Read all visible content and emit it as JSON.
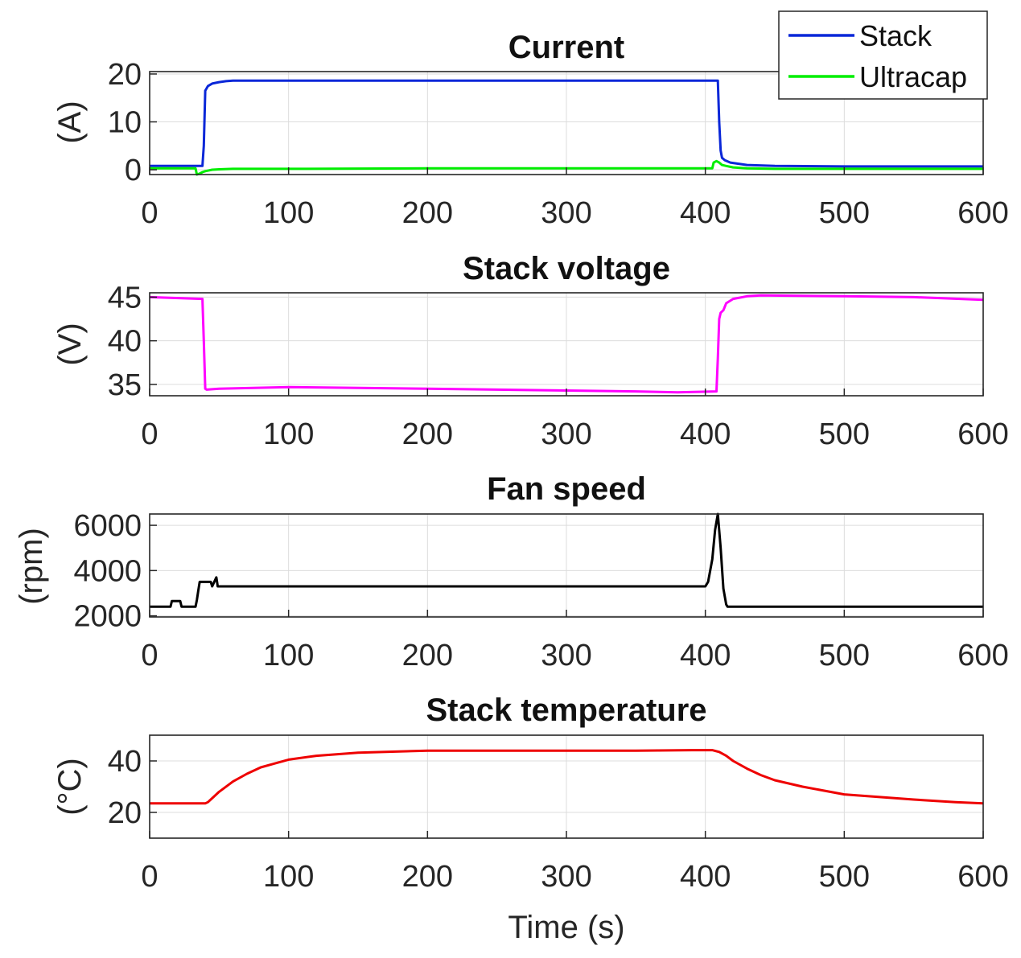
{
  "chart_data": [
    {
      "type": "line",
      "title": "Current",
      "ylabel": "(A)",
      "xlabel": "",
      "xlim": [
        0,
        600
      ],
      "ylim": [
        -1,
        20.5
      ],
      "xticks": [
        0,
        100,
        200,
        300,
        400,
        500,
        600
      ],
      "yticks": [
        0,
        10,
        20
      ],
      "grid": true,
      "legend": "top-right",
      "series": [
        {
          "name": "Stack",
          "color": "#0a27d8",
          "x": [
            0,
            38,
            39,
            40,
            42,
            45,
            50,
            55,
            60,
            100,
            200,
            300,
            400,
            409,
            410,
            411,
            412,
            414,
            418,
            425,
            430,
            450,
            500,
            600
          ],
          "y": [
            0.8,
            0.8,
            5,
            16.5,
            17.5,
            18,
            18.3,
            18.5,
            18.6,
            18.6,
            18.6,
            18.6,
            18.6,
            18.6,
            10,
            4,
            2.5,
            2,
            1.5,
            1.2,
            1.0,
            0.8,
            0.7,
            0.7
          ]
        },
        {
          "name": "Ultracap",
          "color": "#00ee00",
          "x": [
            0,
            33,
            34,
            36,
            38,
            40,
            45,
            50,
            60,
            100,
            200,
            300,
            400,
            405,
            406,
            408,
            410,
            412,
            415,
            420,
            430,
            450,
            500,
            600
          ],
          "y": [
            0.3,
            0.3,
            -1.3,
            -0.8,
            -0.5,
            -0.3,
            0,
            0.1,
            0.2,
            0.2,
            0.3,
            0.3,
            0.3,
            0.3,
            1.5,
            1.8,
            1.5,
            1.0,
            0.8,
            0.5,
            0.3,
            0.2,
            0.2,
            0.2
          ]
        }
      ]
    },
    {
      "type": "line",
      "title": "Stack voltage",
      "ylabel": "(V)",
      "xlabel": "",
      "xlim": [
        0,
        600
      ],
      "ylim": [
        33.7,
        45.5
      ],
      "xticks": [
        0,
        100,
        200,
        300,
        400,
        500,
        600
      ],
      "yticks": [
        35,
        40,
        45
      ],
      "grid": true,
      "series": [
        {
          "name": "",
          "color": "#ff00ff",
          "x": [
            0,
            38,
            39,
            40,
            41,
            50,
            100,
            150,
            200,
            250,
            300,
            350,
            380,
            408,
            409,
            410,
            411,
            413,
            415,
            420,
            430,
            440,
            500,
            550,
            600
          ],
          "y": [
            45,
            44.8,
            40,
            34.5,
            34.4,
            34.5,
            34.7,
            34.6,
            34.5,
            34.4,
            34.3,
            34.2,
            34.1,
            34.2,
            38,
            42.5,
            43.2,
            43.5,
            44.3,
            44.8,
            45.1,
            45.2,
            45.1,
            45,
            44.7
          ]
        }
      ]
    },
    {
      "type": "line",
      "title": "Fan speed",
      "ylabel": "(rpm)",
      "xlabel": "",
      "xlim": [
        0,
        600
      ],
      "ylim": [
        1950,
        6500
      ],
      "xticks": [
        0,
        100,
        200,
        300,
        400,
        500,
        600
      ],
      "yticks": [
        2000,
        4000,
        6000
      ],
      "grid": true,
      "series": [
        {
          "name": "",
          "color": "#000000",
          "x": [
            0,
            15,
            16,
            22,
            23,
            33,
            34,
            35,
            36,
            44,
            45,
            48,
            49,
            60,
            100,
            150,
            200,
            250,
            300,
            350,
            400,
            402,
            405,
            407,
            409,
            411,
            413,
            415,
            416,
            420,
            430,
            500,
            600
          ],
          "y": [
            2400,
            2400,
            2650,
            2650,
            2400,
            2400,
            2700,
            3100,
            3500,
            3500,
            3300,
            3700,
            3300,
            3300,
            3300,
            3300,
            3300,
            3300,
            3300,
            3300,
            3300,
            3500,
            4500,
            5800,
            6500,
            5000,
            3200,
            2500,
            2400,
            2400,
            2400,
            2400,
            2400
          ]
        }
      ]
    },
    {
      "type": "line",
      "title": "Stack temperature",
      "ylabel": "(°C)",
      "xlabel": "Time (s)",
      "xlim": [
        0,
        600
      ],
      "ylim": [
        10,
        50
      ],
      "xticks": [
        0,
        100,
        200,
        300,
        400,
        500,
        600
      ],
      "yticks": [
        20,
        40
      ],
      "grid": true,
      "series": [
        {
          "name": "",
          "color": "#ee0000",
          "x": [
            0,
            40,
            42,
            45,
            50,
            60,
            70,
            80,
            90,
            100,
            120,
            150,
            200,
            250,
            300,
            350,
            390,
            405,
            410,
            415,
            420,
            430,
            440,
            450,
            470,
            500,
            550,
            580,
            600
          ],
          "y": [
            23.5,
            23.5,
            24.0,
            25.5,
            28.0,
            32.0,
            35.0,
            37.5,
            39.0,
            40.5,
            42.0,
            43.2,
            44.0,
            44.0,
            44.0,
            44.0,
            44.2,
            44.2,
            43.5,
            42.0,
            40.0,
            37.0,
            34.5,
            32.5,
            30.0,
            27.0,
            25.0,
            24.0,
            23.5
          ]
        }
      ]
    }
  ]
}
